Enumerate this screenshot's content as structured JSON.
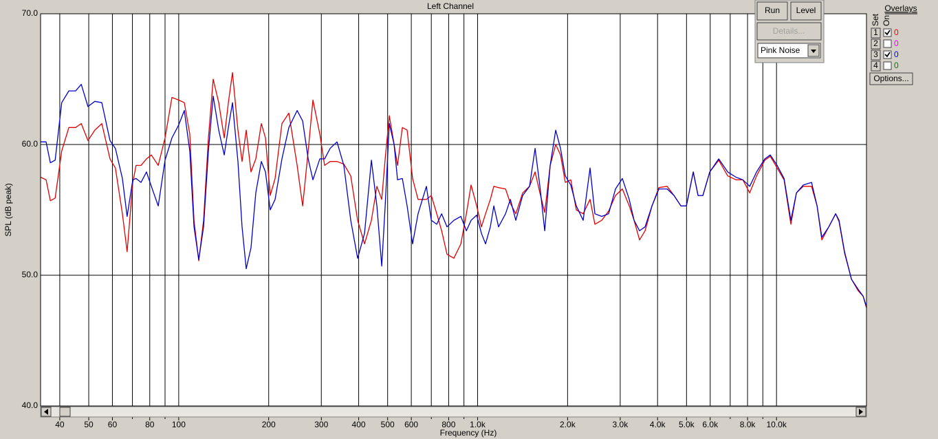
{
  "window": {
    "controls": {
      "run": "Run",
      "level": "Level",
      "details": "Details...",
      "generator": "Pink Noise",
      "options": "Options..."
    },
    "overlays": {
      "title": "Overlays",
      "set_header": "Set",
      "on_header": "On",
      "rows": [
        {
          "set": "1",
          "on": true,
          "label": "0",
          "color": "#ff0000"
        },
        {
          "set": "2",
          "on": false,
          "label": "0",
          "color": "#ff00ff"
        },
        {
          "set": "3",
          "on": true,
          "label": "0",
          "color": "#0000ff"
        },
        {
          "set": "4",
          "on": false,
          "label": "0",
          "color": "#008000"
        }
      ]
    }
  },
  "chart_data": {
    "type": "line",
    "title": "Left Channel",
    "xlabel": "Frequency (Hz)",
    "ylabel": "SPL (dB peak)",
    "xscale": "log",
    "xlim": [
      34.5,
      20000
    ],
    "ylim": [
      40,
      70
    ],
    "grid": true,
    "yticks": [
      {
        "value": 40,
        "label": "40.0"
      },
      {
        "value": 50,
        "label": "50.0"
      },
      {
        "value": 60,
        "label": "60.0"
      },
      {
        "value": 70,
        "label": "70.0"
      }
    ],
    "xticks": [
      40,
      50,
      60,
      80,
      100,
      200,
      300,
      400,
      500,
      600,
      800,
      {
        "value": 1000,
        "label": "1.0k"
      },
      {
        "value": 2000,
        "label": "2.0k"
      },
      {
        "value": 3000,
        "label": "3.0k"
      },
      {
        "value": 4000,
        "label": "4.0k"
      },
      {
        "value": 5000,
        "label": "5.0k"
      },
      {
        "value": 6000,
        "label": "6.0k"
      },
      {
        "value": 8000,
        "label": "8.0k"
      },
      {
        "value": 10000,
        "label": "10.0k"
      }
    ],
    "xminor": [
      70,
      90,
      700,
      900,
      7000,
      9000
    ],
    "x": [
      34.5,
      36,
      37.2,
      38.6,
      40.6,
      42.9,
      45.2,
      47.2,
      49.7,
      52.4,
      55.3,
      58.9,
      61.4,
      64.8,
      67.2,
      70.2,
      72,
      74.8,
      78,
      81,
      85.4,
      90,
      94.9,
      100,
      104.4,
      108.9,
      112.5,
      116.7,
      121.1,
      125.7,
      130.4,
      136.1,
      142,
      146.6,
      151.3,
      157.8,
      162.9,
      168.2,
      174.5,
      181.1,
      189,
      195.1,
      202.4,
      210.1,
      221.5,
      233.6,
      249,
      259.8,
      271.1,
      281.2,
      296.5,
      307.7,
      321,
      338.5,
      356.8,
      376.3,
      396.8,
      418.5,
      441.2,
      460.3,
      477.8,
      490.6,
      506.5,
      525.6,
      539.6,
      560,
      581,
      606,
      632,
      674,
      700,
      730,
      758,
      790,
      833,
      879,
      917,
      951,
      993,
      1030,
      1063,
      1103,
      1133,
      1175,
      1240,
      1287,
      1342,
      1415,
      1492,
      1557,
      1616,
      1677,
      1749,
      1825,
      1894,
      1965,
      2050,
      2139,
      2255,
      2378,
      2468,
      2602,
      2743,
      2893,
      3050,
      3216,
      3338,
      3482,
      3633,
      3832,
      4040,
      4307,
      4541,
      4788,
      4995,
      5266,
      5465,
      5672,
      5980,
      6407,
      6866,
      7318,
      7716,
      8135,
      8577,
      9139,
      9532,
      10050,
      10600,
      11170,
      11660,
      12290,
      13100,
      13670,
      14180,
      14960,
      15770,
      16190,
      16890,
      17810,
      18780,
      19490,
      20000
    ],
    "series": [
      {
        "color": "#e00000",
        "values": [
          57.5,
          57.3,
          55.7,
          55.9,
          59.5,
          61.3,
          61.3,
          61.6,
          60.3,
          61.1,
          61.6,
          58.9,
          58.2,
          54.7,
          51.8,
          57.1,
          58.4,
          58.4,
          58.9,
          59.2,
          58.4,
          60.5,
          63.6,
          63.4,
          63.2,
          60.8,
          54.2,
          51.1,
          54.2,
          60.5,
          65,
          63.2,
          60.5,
          63.2,
          65.5,
          61.1,
          58.7,
          61.1,
          57.9,
          58.9,
          61.6,
          60.5,
          56.1,
          57.4,
          61.6,
          62.4,
          58.4,
          55.3,
          59.5,
          63.4,
          60.8,
          58.4,
          58.7,
          58.7,
          58.5,
          57.6,
          54.2,
          52.4,
          54.2,
          56.8,
          55.8,
          58.9,
          62.2,
          60,
          58.4,
          61.3,
          61.1,
          57.4,
          55.8,
          55.8,
          56.1,
          54.7,
          53.4,
          51.6,
          51.3,
          52.4,
          54.7,
          56.9,
          55.3,
          53.7,
          54.7,
          55.8,
          56.8,
          56.7,
          56.6,
          55.5,
          54.7,
          56.3,
          56.8,
          57.9,
          56.3,
          54.8,
          58.4,
          60,
          59.2,
          57.1,
          57.3,
          55,
          54.7,
          55.8,
          53.9,
          54.2,
          54.9,
          56.1,
          56.6,
          55.3,
          54.2,
          52.7,
          53.4,
          55.3,
          56.7,
          56.8,
          56.1,
          55.3,
          55.3,
          57.9,
          56.1,
          56.1,
          57.9,
          58.8,
          57.6,
          57.3,
          57.3,
          56.3,
          57.6,
          58.8,
          59.1,
          58.2,
          57.3,
          53.9,
          56.3,
          56.8,
          56.8,
          55.3,
          52.7,
          53.7,
          54.7,
          54.1,
          51.7,
          49.7,
          48.8,
          48.4,
          47.5
        ]
      },
      {
        "color": "#0000c8",
        "values": [
          60.2,
          60.2,
          58.6,
          58.8,
          63.2,
          64.1,
          64.1,
          64.6,
          62.9,
          63.3,
          63.2,
          60.3,
          59.7,
          57.4,
          54.5,
          57.3,
          57.4,
          57.1,
          57.9,
          56.8,
          55.3,
          58.8,
          60.5,
          61.5,
          62.6,
          59.5,
          53.7,
          51.2,
          53.7,
          59.5,
          63.7,
          61.1,
          59.2,
          61.3,
          63.2,
          58.7,
          53.7,
          50.5,
          52.1,
          56.3,
          58.7,
          57.9,
          55,
          55.8,
          58.9,
          61.3,
          62.6,
          61.8,
          58.9,
          57.3,
          58.9,
          58.9,
          59.7,
          60.2,
          58.4,
          54.2,
          51.3,
          53.2,
          58.8,
          55.3,
          50.7,
          55.3,
          61.6,
          60,
          57.3,
          57.4,
          55.3,
          52.4,
          54.7,
          56.8,
          54.2,
          53.9,
          54.7,
          53.7,
          54.2,
          54.5,
          53.4,
          54.2,
          54.6,
          53.2,
          52.4,
          53.7,
          55.3,
          53.7,
          54.7,
          55.8,
          54.2,
          56.1,
          56.8,
          59.7,
          56.8,
          53.4,
          58.4,
          61.1,
          59.7,
          57.6,
          56.9,
          55.3,
          54.2,
          58.2,
          54.7,
          54.5,
          54.7,
          56.6,
          57.4,
          55.8,
          54.2,
          53.4,
          53.7,
          55.3,
          56.6,
          56.6,
          56.1,
          55.3,
          55.3,
          57.9,
          56.1,
          56.1,
          57.9,
          58.9,
          57.9,
          57.5,
          57.3,
          56.8,
          57.9,
          58.9,
          59.2,
          58.4,
          57.4,
          54.2,
          56.3,
          56.9,
          57.1,
          55.3,
          52.9,
          53.7,
          54.7,
          54.2,
          51.8,
          49.7,
          48.9,
          48.4,
          47.6
        ]
      }
    ]
  }
}
